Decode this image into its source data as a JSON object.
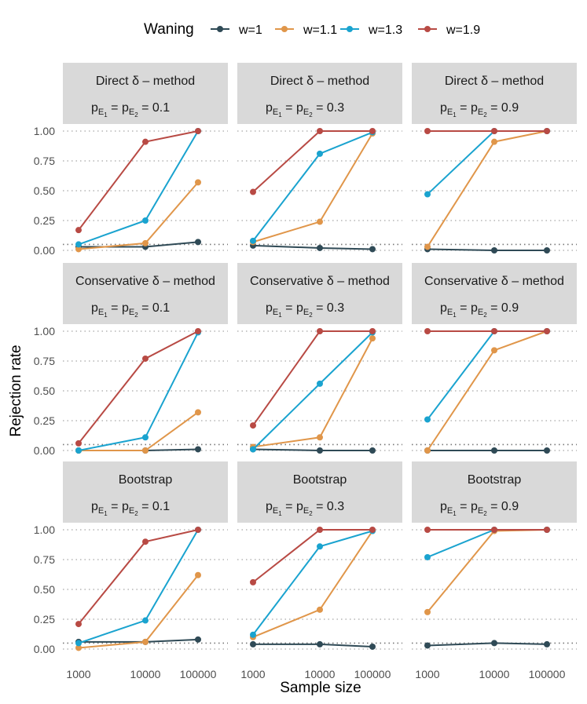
{
  "colors": {
    "w=1": "#2f4a56",
    "w=1.1": "#e0964a",
    "w=1.3": "#1aa3cf",
    "w=1.9": "#b84a44",
    "strip_bg": "#d9d9d9",
    "grid": "#b5b5b5",
    "text": "#000000",
    "tick_text": "#4d4d4d"
  },
  "chart_data": {
    "type": "line",
    "x_scale": "log",
    "legend": {
      "title": "Waning",
      "position": "top",
      "entries": [
        "w=1",
        "w=1.1",
        "w=1.3",
        "w=1.9"
      ]
    },
    "xlabel": "Sample size",
    "ylabel": "Rejection rate",
    "x_ticks": [
      1000,
      10000,
      100000
    ],
    "x_tick_labels": [
      "1000",
      "10000",
      "100000"
    ],
    "y_ticks": [
      0,
      0.25,
      0.5,
      0.75,
      1
    ],
    "y_tick_labels": [
      "0.00",
      "0.25",
      "0.50",
      "0.75",
      "1.00"
    ],
    "ylim": [
      0,
      1
    ],
    "reference_line": 0.05,
    "row_labels": [
      "Direct  δ – method",
      "Conservative  δ – method",
      "Bootstrap"
    ],
    "col_strip_prefix": "p_E1 =  p_E2 =",
    "col_values": [
      "0.1",
      "0.3",
      "0.9"
    ],
    "panels": [
      [
        {
          "series": {
            "w=1": [
              0.03,
              0.03,
              0.07
            ],
            "w=1.1": [
              0.01,
              0.06,
              0.57
            ],
            "w=1.3": [
              0.05,
              0.25,
              1.0
            ],
            "w=1.9": [
              0.17,
              0.91,
              1.0
            ]
          }
        },
        {
          "series": {
            "w=1": [
              0.04,
              0.02,
              0.01
            ],
            "w=1.1": [
              0.07,
              0.24,
              0.98
            ],
            "w=1.3": [
              0.08,
              0.81,
              0.99
            ],
            "w=1.9": [
              0.49,
              1.0,
              1.0
            ]
          }
        },
        {
          "series": {
            "w=1": [
              0.01,
              0.0,
              0.0
            ],
            "w=1.1": [
              0.03,
              0.91,
              1.0
            ],
            "w=1.3": [
              0.47,
              1.0,
              1.0
            ],
            "w=1.9": [
              1.0,
              1.0,
              1.0
            ]
          }
        }
      ],
      [
        {
          "series": {
            "w=1": [
              0.0,
              0.0,
              0.01
            ],
            "w=1.1": [
              0.0,
              0.0,
              0.32
            ],
            "w=1.3": [
              0.0,
              0.11,
              0.99
            ],
            "w=1.9": [
              0.06,
              0.77,
              1.0
            ]
          }
        },
        {
          "series": {
            "w=1": [
              0.01,
              0.0,
              0.0
            ],
            "w=1.1": [
              0.03,
              0.11,
              0.94
            ],
            "w=1.3": [
              0.01,
              0.56,
              0.99
            ],
            "w=1.9": [
              0.21,
              1.0,
              1.0
            ]
          }
        },
        {
          "series": {
            "w=1": [
              0.0,
              0.0,
              0.0
            ],
            "w=1.1": [
              0.0,
              0.84,
              1.0
            ],
            "w=1.3": [
              0.26,
              1.0,
              1.0
            ],
            "w=1.9": [
              1.0,
              1.0,
              1.0
            ]
          }
        }
      ],
      [
        {
          "series": {
            "w=1": [
              0.06,
              0.06,
              0.08
            ],
            "w=1.1": [
              0.01,
              0.06,
              0.62
            ],
            "w=1.3": [
              0.05,
              0.24,
              1.0
            ],
            "w=1.9": [
              0.21,
              0.9,
              1.0
            ]
          }
        },
        {
          "series": {
            "w=1": [
              0.04,
              0.04,
              0.02
            ],
            "w=1.1": [
              0.1,
              0.33,
              0.99
            ],
            "w=1.3": [
              0.12,
              0.86,
              0.99
            ],
            "w=1.9": [
              0.56,
              1.0,
              1.0
            ]
          }
        },
        {
          "series": {
            "w=1": [
              0.03,
              0.05,
              0.04
            ],
            "w=1.1": [
              0.31,
              0.99,
              1.0
            ],
            "w=1.3": [
              0.77,
              1.0,
              1.0
            ],
            "w=1.9": [
              1.0,
              1.0,
              1.0
            ]
          }
        }
      ]
    ]
  }
}
